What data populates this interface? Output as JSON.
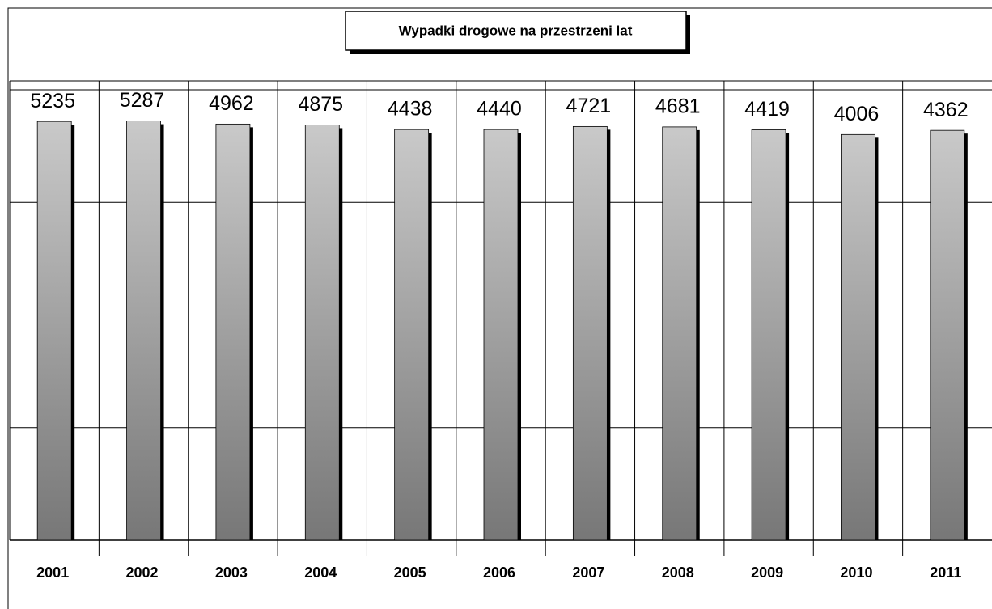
{
  "chart_data": {
    "type": "bar",
    "title": "Wypadki drogowe na przestrzeni lat",
    "categories": [
      "2001",
      "2002",
      "2003",
      "2004",
      "2005",
      "2006",
      "2007",
      "2008",
      "2009",
      "2010",
      "2011"
    ],
    "values": [
      5235,
      5287,
      4962,
      4875,
      4438,
      4440,
      4721,
      4681,
      4419,
      4006,
      4362
    ],
    "ylim": [
      1,
      10000
    ],
    "yticks": [
      1,
      10,
      100,
      1000,
      10000
    ],
    "log_scale": true,
    "grid": true
  }
}
